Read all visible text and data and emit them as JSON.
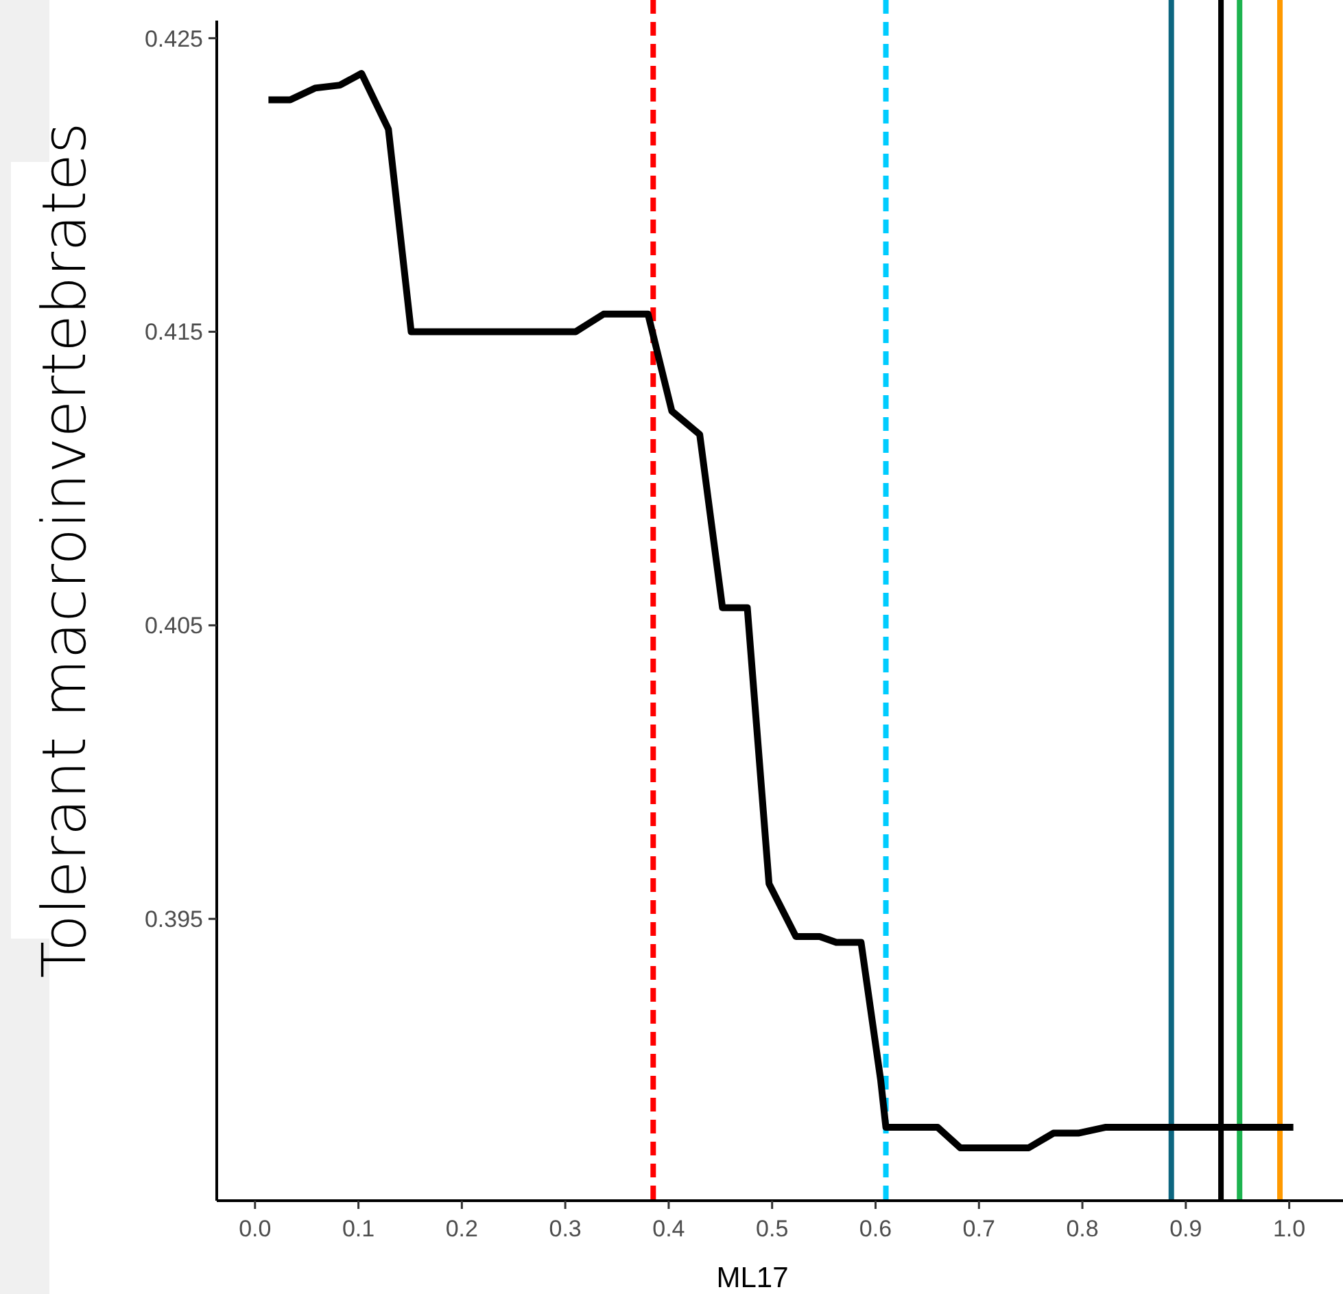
{
  "chart_data": {
    "type": "line",
    "xlabel": "ML17",
    "ylabel": "Tolerant macroinvertebrates",
    "x": [
      0.013,
      0.034,
      0.058,
      0.082,
      0.103,
      0.129,
      0.151,
      0.31,
      0.337,
      0.38,
      0.403,
      0.43,
      0.452,
      0.476,
      0.497,
      0.523,
      0.546,
      0.562,
      0.586,
      0.605,
      0.61,
      0.66,
      0.682,
      0.748,
      0.772,
      0.796,
      0.822,
      1.004
    ],
    "series": [
      {
        "color": "#000000",
        "values": [
          0.4229,
          0.4229,
          0.4233,
          0.4234,
          0.4238,
          0.4219,
          0.415,
          0.415,
          0.4156,
          0.4156,
          0.4123,
          0.4115,
          0.4056,
          0.4056,
          0.3962,
          0.3944,
          0.3944,
          0.3942,
          0.3942,
          0.3895,
          0.3879,
          0.3879,
          0.3872,
          0.3872,
          0.3877,
          0.3877,
          0.3879,
          0.3879
        ]
      }
    ],
    "xlim": [
      -0.037,
      1.052
    ],
    "ylim": [
      0.3854,
      0.4256
    ],
    "xticks": [
      {
        "value": 0,
        "label": "0.0"
      },
      {
        "value": 0.1,
        "label": "0.1"
      },
      {
        "value": 0.2,
        "label": "0.2"
      },
      {
        "value": 0.3,
        "label": "0.3"
      },
      {
        "value": 0.4,
        "label": "0.4"
      },
      {
        "value": 0.5,
        "label": "0.5"
      },
      {
        "value": 0.6,
        "label": "0.6"
      },
      {
        "value": 0.7,
        "label": "0.7"
      },
      {
        "value": 0.8,
        "label": "0.8"
      },
      {
        "value": 0.9,
        "label": "0.9"
      },
      {
        "value": 1,
        "label": "1.0"
      }
    ],
    "yticks": [
      0.395,
      0.405,
      0.415,
      0.425
    ],
    "ref_lines": [
      {
        "axis": "x",
        "value": 0.385,
        "color": "#ff0000",
        "line_style": "dashed"
      },
      {
        "axis": "x",
        "value": 0.61,
        "color": "#00ccff",
        "line_style": "dashed"
      },
      {
        "axis": "x",
        "value": 0.886,
        "color": "#0d6680",
        "line_style": "solid"
      },
      {
        "axis": "x",
        "value": 0.934,
        "color": "#000000",
        "line_style": "solid"
      },
      {
        "axis": "x",
        "value": 0.952,
        "color": "#1db34f",
        "line_style": "solid"
      },
      {
        "axis": "x",
        "value": 0.991,
        "color": "#ff9900",
        "line_style": "solid"
      }
    ],
    "grid": false,
    "line_style": "solid"
  }
}
